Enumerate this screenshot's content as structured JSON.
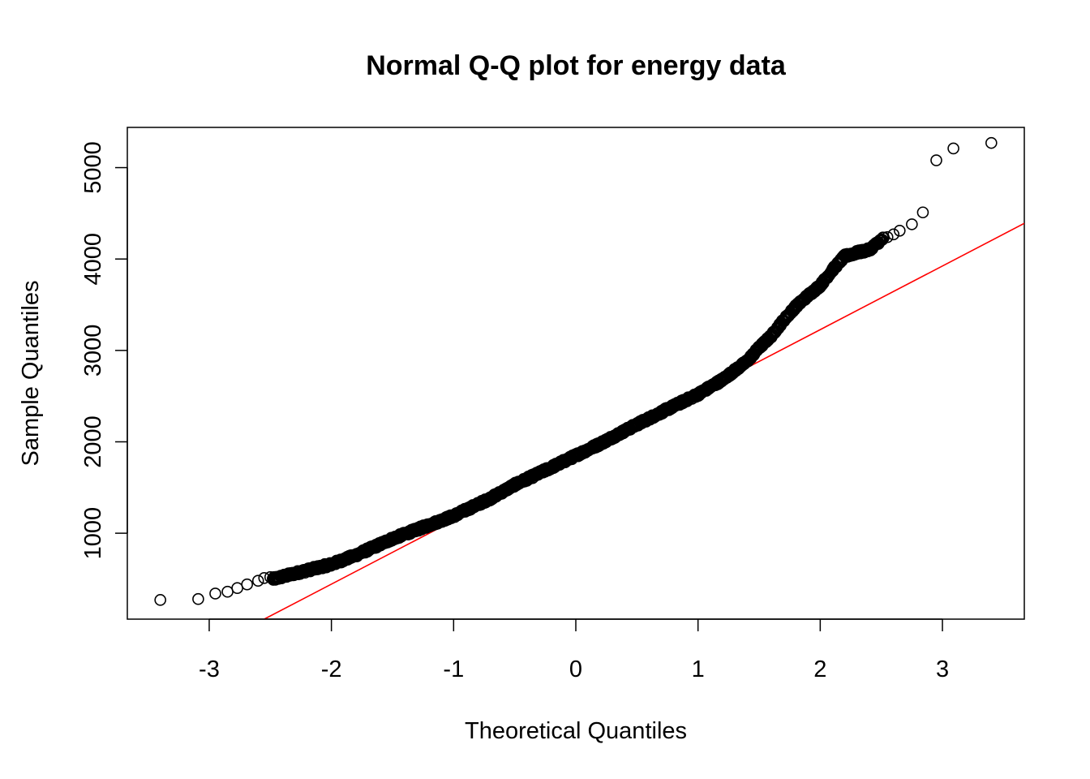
{
  "chart_data": {
    "type": "scatter",
    "title": "Normal Q-Q plot for energy data",
    "xlabel": "Theoretical Quantiles",
    "ylabel": "Sample Quantiles",
    "xlim": [
      -3.67,
      3.67
    ],
    "ylim": [
      60,
      5440
    ],
    "xticks": [
      -3,
      -2,
      -1,
      0,
      1,
      2,
      3
    ],
    "xtick_labels": [
      "-3",
      "-2",
      "-1",
      "0",
      "1",
      "2",
      "3"
    ],
    "yticks": [
      1000,
      2000,
      3000,
      4000,
      5000
    ],
    "ytick_labels": [
      "1000",
      "2000",
      "3000",
      "4000",
      "5000"
    ],
    "grid": false,
    "legend": "none",
    "points_style": "open-circle",
    "points_color": "#000000",
    "reference_line": {
      "color": "#ff0000",
      "points": [
        [
          -2.55,
          60
        ],
        [
          3.67,
          4390
        ]
      ]
    },
    "anchors": [
      [
        -3.4,
        270
      ],
      [
        -3.09,
        280
      ],
      [
        -2.95,
        340
      ],
      [
        -2.85,
        360
      ],
      [
        -2.7,
        410
      ],
      [
        -2.5,
        490
      ],
      [
        -2.3,
        560
      ],
      [
        -2.0,
        660
      ],
      [
        -1.8,
        760
      ],
      [
        -1.5,
        940
      ],
      [
        -1.2,
        1090
      ],
      [
        -1.0,
        1190
      ],
      [
        -0.7,
        1380
      ],
      [
        -0.5,
        1530
      ],
      [
        -0.2,
        1720
      ],
      [
        0.0,
        1850
      ],
      [
        0.2,
        1980
      ],
      [
        0.5,
        2190
      ],
      [
        0.8,
        2390
      ],
      [
        1.0,
        2520
      ],
      [
        1.2,
        2680
      ],
      [
        1.4,
        2880
      ],
      [
        1.5,
        3030
      ],
      [
        1.6,
        3160
      ],
      [
        1.7,
        3330
      ],
      [
        1.8,
        3480
      ],
      [
        1.9,
        3600
      ],
      [
        2.0,
        3710
      ],
      [
        2.1,
        3880
      ],
      [
        2.2,
        4030
      ],
      [
        2.3,
        4070
      ],
      [
        2.4,
        4100
      ],
      [
        2.5,
        4210
      ],
      [
        2.6,
        4280
      ],
      [
        2.7,
        4370
      ],
      [
        2.8,
        4440
      ],
      [
        2.84,
        4510
      ],
      [
        2.95,
        5080
      ],
      [
        3.09,
        5210
      ],
      [
        3.4,
        5270
      ]
    ],
    "tail_points": [
      [
        -3.4,
        270
      ],
      [
        -3.09,
        280
      ],
      [
        -2.95,
        340
      ],
      [
        -2.85,
        360
      ],
      [
        -2.77,
        400
      ],
      [
        -2.69,
        440
      ],
      [
        -2.6,
        480
      ],
      [
        -2.55,
        510
      ],
      [
        -2.5,
        520
      ],
      [
        2.55,
        4240
      ],
      [
        2.6,
        4270
      ],
      [
        2.65,
        4310
      ],
      [
        2.75,
        4380
      ],
      [
        2.84,
        4510
      ],
      [
        2.95,
        5080
      ],
      [
        3.09,
        5210
      ],
      [
        3.4,
        5270
      ]
    ],
    "bulk_range": [
      -2.48,
      2.52
    ],
    "bulk_count": 1400
  }
}
